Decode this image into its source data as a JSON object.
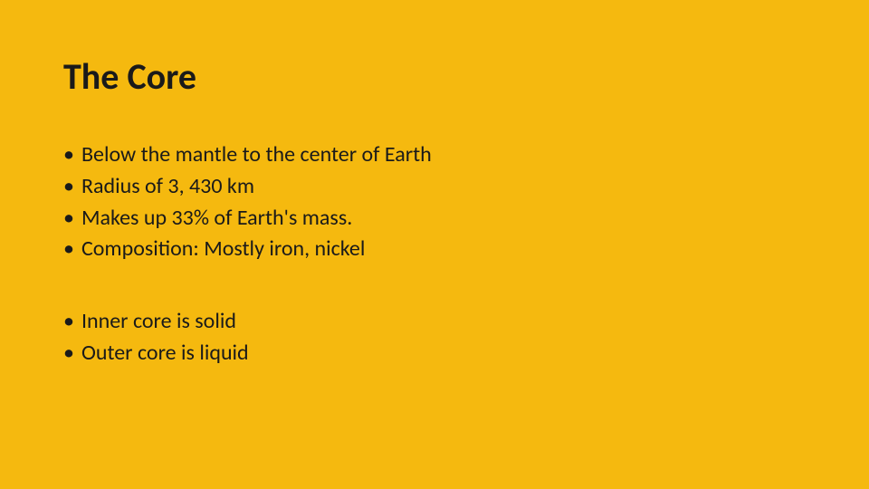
{
  "background_color": "#f5b90f",
  "text_color": "#1a1a1a",
  "title": "The Core",
  "title_fontsize": 40,
  "body_fontsize": 24,
  "groups": [
    {
      "items": [
        "Below the mantle to the center of Earth",
        "Radius of 3, 430 km",
        "Makes up 33% of Earth's mass.",
        "Composition: Mostly iron, nickel"
      ]
    },
    {
      "items": [
        "Inner core is solid",
        "Outer core is liquid"
      ]
    }
  ]
}
